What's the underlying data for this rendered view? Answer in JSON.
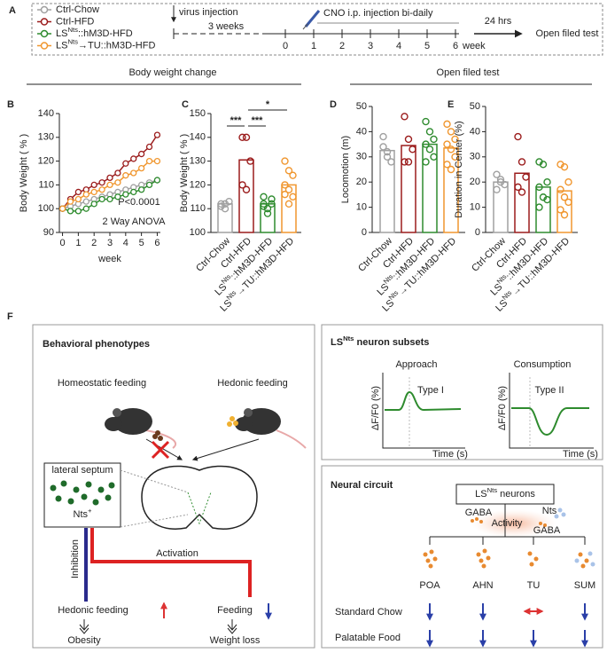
{
  "panel_labels": [
    "A",
    "B",
    "C",
    "D",
    "E",
    "F"
  ],
  "timeline": {
    "virus": "virus injection",
    "weeks3": "3 weeks",
    "cno": "CNO i.p. injection bi-daily",
    "ticks": [
      0,
      1,
      2,
      3,
      4,
      5,
      6
    ],
    "unit": "week",
    "after": "24 hrs",
    "test": "Open filed test"
  },
  "section_titles": [
    "Body weight change",
    "Open filed test"
  ],
  "chart_data": [
    {
      "type": "line",
      "x_label": "week",
      "y_label": "Body Weight ( % )",
      "annotations": [
        "P<0.0001",
        "2 Way ANOVA"
      ],
      "x": [
        0,
        0.5,
        1,
        1.5,
        2,
        2.5,
        3,
        3.5,
        4,
        4.5,
        5,
        5.5,
        6
      ],
      "xlim": [
        -0.2,
        6.2
      ],
      "xticks": [
        0,
        1,
        2,
        3,
        4,
        5,
        6
      ],
      "ylim": [
        90,
        140
      ],
      "yticks": [
        90,
        100,
        110,
        120,
        130,
        140
      ],
      "series": [
        {
          "name": "Ctrl-Chow",
          "color": "#a0a0a0",
          "values": [
            100,
            101,
            102,
            103,
            104,
            105,
            106,
            107,
            108,
            109,
            110,
            111,
            112
          ]
        },
        {
          "name": "Ctrl-HFD",
          "color": "#9b1c1c",
          "values": [
            100,
            104,
            107,
            108,
            110,
            111,
            113,
            115,
            119,
            121,
            123,
            126,
            131
          ]
        },
        {
          "name": "LSNts::hM3D-HFD",
          "color": "#2e8b2e",
          "values": [
            100,
            99,
            99,
            100,
            102,
            104,
            104,
            105,
            106,
            107,
            108,
            110,
            112
          ]
        },
        {
          "name": "LSNts→TU::hM3D-HFD",
          "color": "#f0962e",
          "values": [
            100,
            103,
            104,
            106,
            107,
            108,
            110,
            111,
            114,
            115,
            117,
            120,
            120
          ]
        }
      ]
    },
    {
      "type": "bar",
      "y_label": "Body Weight ( % )",
      "annotations": [
        "***",
        "***",
        "*"
      ],
      "categories": [
        "Ctrl-Chow",
        "Ctrl-HFD",
        "LSNts::hM3D-HFD",
        "LSNts→TU::hM3D-HFD"
      ],
      "colors": [
        "#a0a0a0",
        "#9b1c1c",
        "#2e8b2e",
        "#f0962e"
      ],
      "values": [
        112,
        130.5,
        112,
        120
      ],
      "points": [
        [
          111,
          112,
          113,
          112,
          110
        ],
        [
          140,
          140,
          130,
          120,
          118
        ],
        [
          112,
          110,
          114,
          115,
          108,
          112,
          111
        ],
        [
          130,
          126,
          124,
          120,
          118,
          115,
          116,
          112
        ]
      ],
      "ylim": [
        100,
        150
      ],
      "yticks": [
        100,
        110,
        120,
        130,
        140,
        150
      ]
    },
    {
      "type": "bar",
      "y_label": "Locomotion (m)",
      "categories": [
        "Ctrl-Chow",
        "Ctrl-HFD",
        "LSNts::hM3D-HFD",
        "LSNts→TU::hM3D-HFD"
      ],
      "colors": [
        "#a0a0a0",
        "#9b1c1c",
        "#2e8b2e",
        "#f0962e"
      ],
      "values": [
        32.5,
        34.5,
        35,
        33.5
      ],
      "points": [
        [
          38,
          32,
          28,
          34,
          30
        ],
        [
          46,
          37,
          33,
          28,
          28
        ],
        [
          44,
          40,
          37,
          35,
          33,
          30,
          28
        ],
        [
          43,
          40,
          37,
          35,
          33,
          30,
          27,
          25
        ]
      ],
      "ylim": [
        0,
        50
      ],
      "yticks": [
        0,
        10,
        20,
        30,
        40,
        50
      ]
    },
    {
      "type": "bar",
      "y_label": "Duration in Center (%)",
      "categories": [
        "Ctrl-Chow",
        "Ctrl-HFD",
        "LSNts::hM3D-HFD",
        "LSNts→TU::hM3D-HFD"
      ],
      "colors": [
        "#a0a0a0",
        "#9b1c1c",
        "#2e8b2e",
        "#f0962e"
      ],
      "values": [
        20,
        23.5,
        18,
        16.5
      ],
      "points": [
        [
          23,
          21,
          19,
          17,
          20
        ],
        [
          38,
          28,
          22,
          18,
          16
        ],
        [
          28,
          27,
          20,
          18,
          14,
          13,
          10
        ],
        [
          27,
          26,
          20,
          17,
          14,
          12,
          9,
          7
        ]
      ],
      "ylim": [
        0,
        50
      ],
      "yticks": [
        0,
        10,
        20,
        30,
        40,
        50
      ]
    }
  ],
  "phenotypes": {
    "title": "Behavioral phenotypes",
    "homeostatic": "Homeostatic feeding",
    "hedonic": "Hedonic feeding",
    "region": "lateral septum",
    "marker": "Nts+",
    "inhibition": "Inhibition",
    "activation": "Activation",
    "out_left": "Hedonic feeding",
    "result_left": "Obesity",
    "out_right": "Feeding",
    "result_right": "Weight loss"
  },
  "subsets": {
    "title": "LSNts neuron subsets",
    "approach": "Approach",
    "consumption": "Consumption",
    "type1": "Type I",
    "type2": "Type II",
    "y_label": "ΔF/F0 (%)",
    "x_label": "Time (s)"
  },
  "circuit": {
    "title": "Neural circuit",
    "source": "LSNts neurons",
    "gaba1": "GABA",
    "activity": "Activity",
    "nts": "Nts",
    "gaba2": "GABA",
    "targets": [
      "POA",
      "AHN",
      "TU",
      "SUM"
    ],
    "rows": [
      "Standard Chow",
      "Palatable Food"
    ]
  }
}
